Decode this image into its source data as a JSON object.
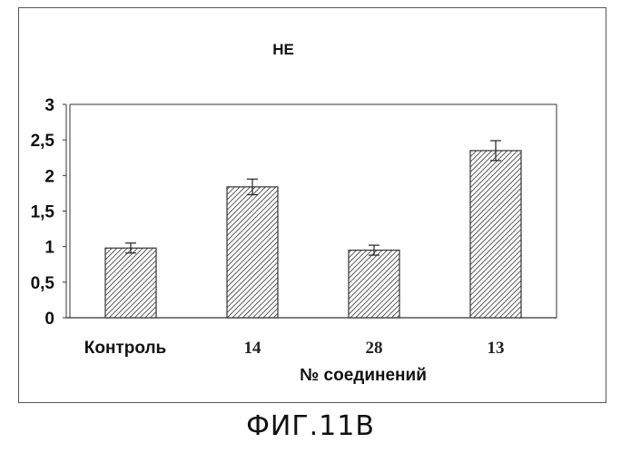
{
  "chart_data": {
    "type": "bar",
    "title": "НЕ",
    "xlabel": "№ соединений",
    "ylabel": "",
    "categories": [
      "Контроль",
      "14",
      "28",
      "13"
    ],
    "values": [
      0.98,
      1.84,
      0.95,
      2.35
    ],
    "errors": [
      0.07,
      0.11,
      0.07,
      0.14
    ],
    "ylim": [
      0,
      3
    ],
    "yticks": [
      "0",
      "0,5",
      "1",
      "1,5",
      "2",
      "2,5",
      "3"
    ],
    "grid": false,
    "legend": "none",
    "bar_pattern": "diagonal-hatch"
  },
  "caption": "ФИГ.11В",
  "colors": {
    "bar_fill": "#ffffff",
    "hatch": "#333333",
    "axis": "#333333"
  }
}
